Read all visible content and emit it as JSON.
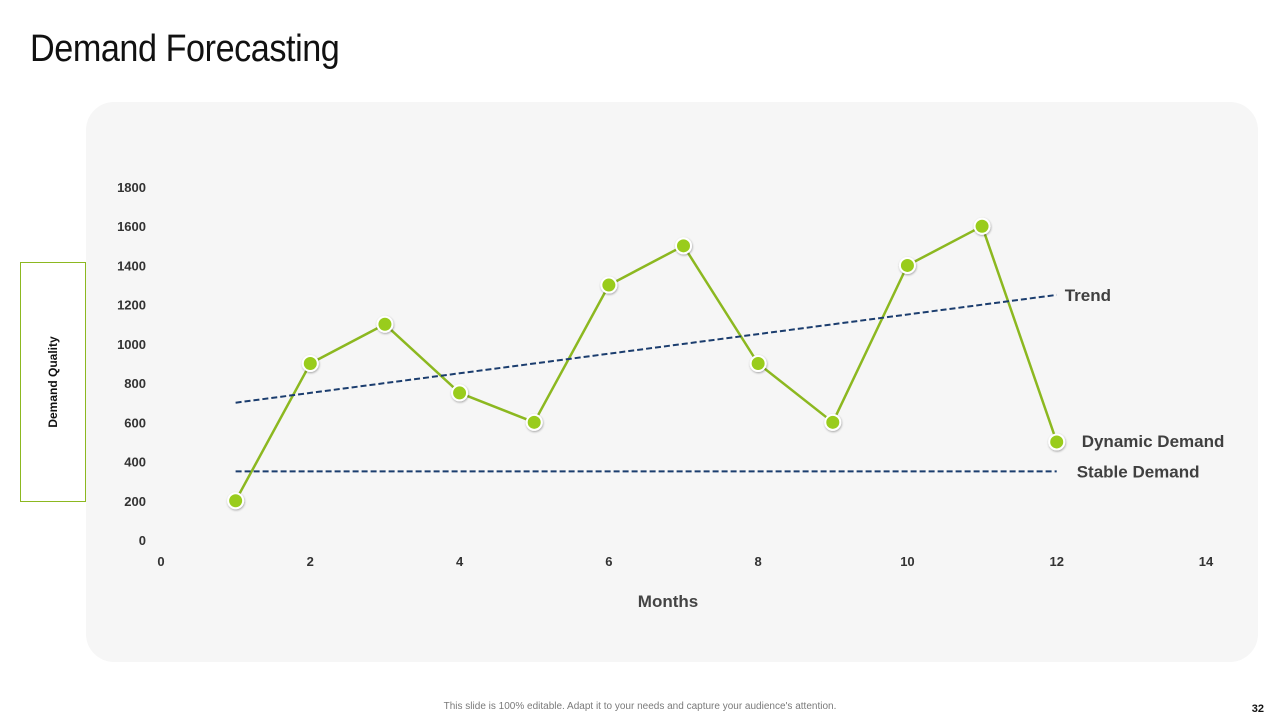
{
  "slide": {
    "title": "Demand Forecasting",
    "footer_note": "This slide is 100% editable. Adapt it to your needs and capture your audience's attention.",
    "page_number": "32"
  },
  "colors": {
    "series_line": "#8cb820",
    "marker_fill": "#99cc1a",
    "reference_line": "#1b3d6e",
    "panel_bg": "#f6f6f6"
  },
  "chart_data": {
    "type": "line",
    "title": "",
    "xlabel": "Months",
    "ylabel": "Demand Quality",
    "xlim": [
      0,
      14
    ],
    "ylim": [
      0,
      1800
    ],
    "x_ticks": [
      "0",
      "2",
      "4",
      "6",
      "8",
      "10",
      "12",
      "14"
    ],
    "y_ticks": [
      "0",
      "200",
      "400",
      "600",
      "800",
      "1000",
      "1200",
      "1400",
      "1600",
      "1800"
    ],
    "grid": false,
    "series": [
      {
        "name": "Dynamic Demand",
        "x": [
          1,
          2,
          3,
          4,
          5,
          6,
          7,
          8,
          9,
          10,
          11,
          12
        ],
        "y": [
          200,
          900,
          1100,
          750,
          600,
          1300,
          1500,
          900,
          600,
          1400,
          1600,
          500
        ],
        "style": "solid",
        "markers": true
      },
      {
        "name": "Trend",
        "x": [
          1,
          12
        ],
        "y": [
          700,
          1250
        ],
        "style": "dashed",
        "markers": false
      },
      {
        "name": "Stable Demand",
        "x": [
          1,
          12
        ],
        "y": [
          350,
          350
        ],
        "style": "dashed",
        "markers": false
      }
    ]
  }
}
